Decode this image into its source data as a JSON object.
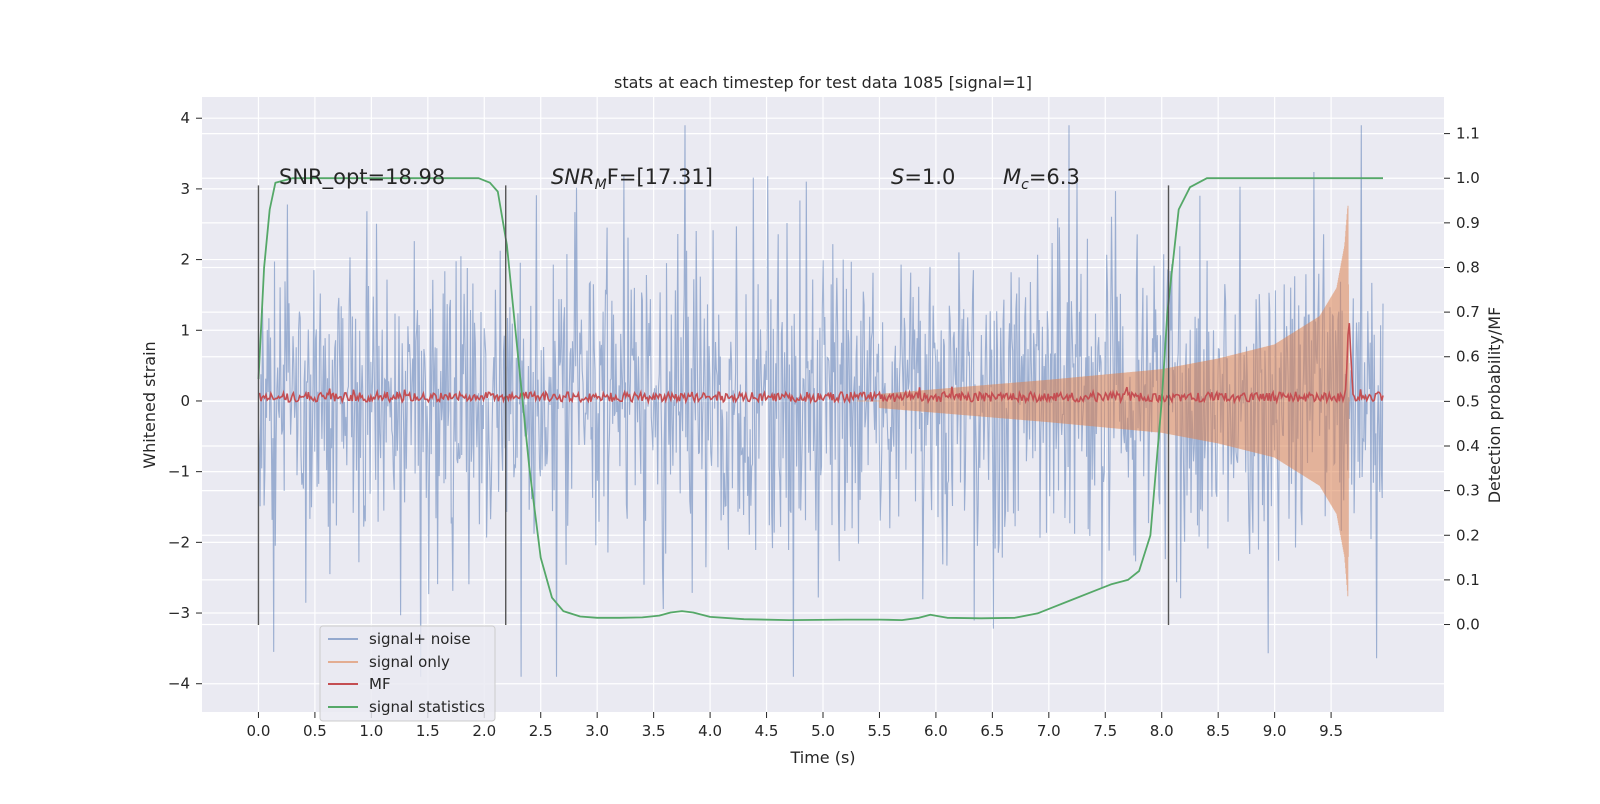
{
  "chart_data": {
    "type": "line",
    "title": "stats at each timestep for test data 1085 [signal=1]",
    "xlabel": "Time (s)",
    "ylabel_left": "Whitened strain",
    "ylabel_right": "Detection probability/MF",
    "xlim": [
      -0.5,
      10.5
    ],
    "ylim_left": [
      -4.4,
      4.3
    ],
    "ylim_right": [
      -0.196,
      1.182
    ],
    "xticks": [
      "0.0",
      "0.5",
      "1.0",
      "1.5",
      "2.0",
      "2.5",
      "3.0",
      "3.5",
      "4.0",
      "4.5",
      "5.0",
      "5.5",
      "6.0",
      "6.5",
      "7.0",
      "7.5",
      "8.0",
      "8.5",
      "9.0",
      "9.5"
    ],
    "xtick_values": [
      0,
      0.5,
      1,
      1.5,
      2,
      2.5,
      3,
      3.5,
      4,
      4.5,
      5,
      5.5,
      6,
      6.5,
      7,
      7.5,
      8,
      8.5,
      9,
      9.5
    ],
    "yticks_left": [
      "4",
      "3",
      "2",
      "1",
      "0",
      "−1",
      "−2",
      "−3",
      "−4"
    ],
    "ytick_left_values": [
      4,
      3,
      2,
      1,
      0,
      -1,
      -2,
      -3,
      -4
    ],
    "yticks_right": [
      "1.1",
      "1.0",
      "0.9",
      "0.8",
      "0.7",
      "0.6",
      "0.5",
      "0.4",
      "0.3",
      "0.2",
      "0.1",
      "0.0"
    ],
    "ytick_right_values": [
      1.1,
      1.0,
      0.9,
      0.8,
      0.7,
      0.6,
      0.5,
      0.4,
      0.3,
      0.2,
      0.1,
      0.0
    ],
    "grid": true,
    "legend_position": "lower-left",
    "annotations": {
      "snr_opt": "SNR_opt=18.98",
      "snr_mf_italic": "SNR",
      "snr_mf_sub": "M",
      "snr_mf_rest": "F=[17.31]",
      "s_italic": "S",
      "s_rest": "=1.0",
      "mc_italic": "M",
      "mc_sub": "c",
      "mc_rest": "=6.3"
    },
    "vertical_markers_x": [
      0.0,
      2.19,
      8.06
    ],
    "vertical_markers_yrange": [
      -3.17,
      3.05
    ],
    "series": [
      {
        "name": "signal+ noise",
        "color": "#4c72b0",
        "axis": "left",
        "x_range": [
          0.0,
          9.96
        ],
        "typical_amplitude": 1.3,
        "peak_amplitude": 3.9
      },
      {
        "name": "signal only",
        "color": "#dd8452",
        "axis": "left",
        "envelope": {
          "x": [
            5.5,
            7.0,
            8.0,
            8.5,
            9.0,
            9.4,
            9.55,
            9.62,
            9.65,
            9.66
          ],
          "amplitude": [
            0.1,
            0.3,
            0.45,
            0.6,
            0.8,
            1.2,
            1.6,
            2.2,
            2.8,
            0.0
          ]
        }
      },
      {
        "name": "MF",
        "color": "#c44e52",
        "axis": "right",
        "baseline": 0.51,
        "peak": {
          "x": 9.66,
          "y": 0.68
        }
      },
      {
        "name": "signal statistics",
        "color": "#55a868",
        "axis": "right",
        "x": [
          0.0,
          0.05,
          0.1,
          0.15,
          0.3,
          0.6,
          1.0,
          1.5,
          1.8,
          1.95,
          2.05,
          2.12,
          2.2,
          2.3,
          2.4,
          2.5,
          2.6,
          2.7,
          2.85,
          3.0,
          3.2,
          3.4,
          3.55,
          3.65,
          3.75,
          3.85,
          4.0,
          4.3,
          4.7,
          5.2,
          5.5,
          5.7,
          5.85,
          5.95,
          6.1,
          6.4,
          6.7,
          6.9,
          7.0,
          7.2,
          7.4,
          7.55,
          7.7,
          7.8,
          7.9,
          8.0,
          8.05,
          8.15,
          8.25,
          8.4,
          8.6,
          9.0,
          9.5,
          9.96
        ],
        "y": [
          0.55,
          0.8,
          0.93,
          0.99,
          1.0,
          1.0,
          1.0,
          1.0,
          1.0,
          1.0,
          0.99,
          0.97,
          0.85,
          0.6,
          0.35,
          0.15,
          0.06,
          0.03,
          0.018,
          0.015,
          0.015,
          0.016,
          0.02,
          0.027,
          0.03,
          0.027,
          0.017,
          0.012,
          0.01,
          0.011,
          0.011,
          0.01,
          0.015,
          0.022,
          0.015,
          0.014,
          0.015,
          0.025,
          0.035,
          0.055,
          0.075,
          0.09,
          0.1,
          0.12,
          0.2,
          0.5,
          0.7,
          0.93,
          0.98,
          1.0,
          1.0,
          1.0,
          1.0,
          1.0
        ]
      }
    ]
  },
  "colors": {
    "plot_background": "#eaeaf2",
    "grid": "#ffffff",
    "marker_line": "#555555"
  }
}
